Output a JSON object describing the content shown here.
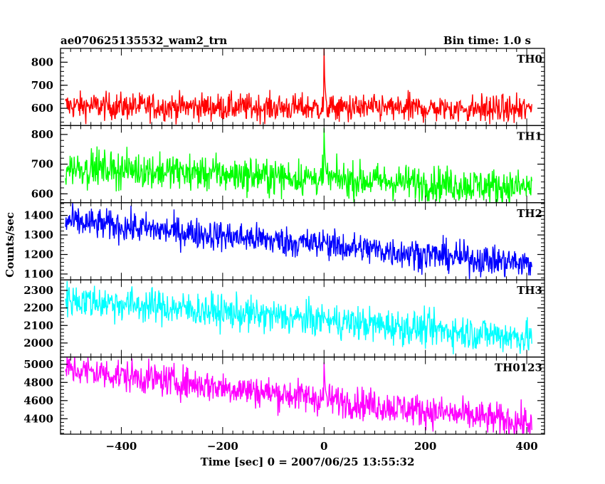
{
  "header": {
    "left_title": "ae070625135532_wam2_trn",
    "right_title": "Bin time: 1.0 s"
  },
  "chart_data": {
    "type": "line",
    "title": "ae070625135532_wam2_trn",
    "bin_time_label": "Bin time: 1.0 s",
    "xlabel": "Time [sec] 0 = 2007/06/25 13:55:32",
    "ylabel": "Counts/sec",
    "xlim": [
      -520,
      435
    ],
    "xticks": [
      -400,
      -200,
      0,
      200,
      400
    ],
    "x_range": [
      -510,
      410
    ],
    "x_step": 1.0,
    "burst_time": 0,
    "grid": false,
    "panels": [
      {
        "name": "TH0",
        "color": "#ff0000",
        "ylim": [
          525,
          860
        ],
        "yticks": [
          600,
          700,
          800
        ],
        "start_level": 610,
        "end_level": 595,
        "noise": 30,
        "peak": 860
      },
      {
        "name": "TH1",
        "color": "#00ff00",
        "ylim": [
          570,
          830
        ],
        "yticks": [
          600,
          700,
          800
        ],
        "start_level": 690,
        "end_level": 620,
        "noise": 30,
        "peak": 830
      },
      {
        "name": "TH2",
        "color": "#0000ff",
        "ylim": [
          1070,
          1465
        ],
        "yticks": [
          1100,
          1200,
          1300,
          1400
        ],
        "start_level": 1370,
        "end_level": 1150,
        "noise": 40,
        "peak": 1300
      },
      {
        "name": "TH3",
        "color": "#00ffff",
        "ylim": [
          1920,
          2360
        ],
        "yticks": [
          2000,
          2100,
          2200,
          2300
        ],
        "start_level": 2250,
        "end_level": 2030,
        "noise": 50,
        "peak": 2180
      },
      {
        "name": "TH0123",
        "color": "#ff00ff",
        "ylim": [
          4230,
          5080
        ],
        "yticks": [
          4400,
          4600,
          4800,
          5000
        ],
        "start_level": 4950,
        "end_level": 4350,
        "noise": 90,
        "peak": 5070
      }
    ]
  }
}
